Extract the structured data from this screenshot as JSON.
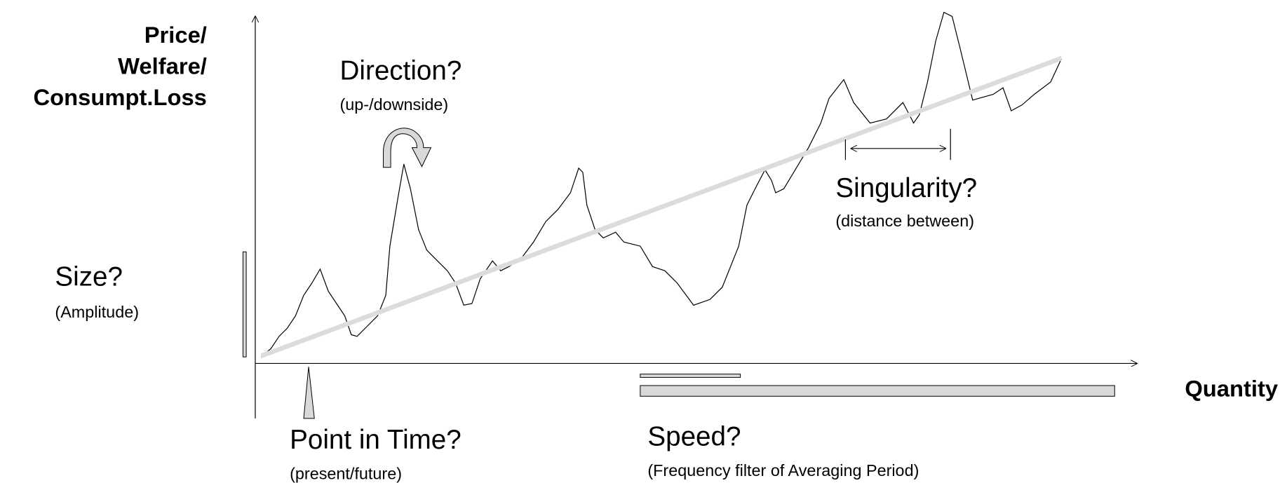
{
  "y_axis_label": [
    "Price/",
    "Welfare/",
    "Consumpt.Loss"
  ],
  "x_axis_label": "Quantity",
  "annotations": [
    {
      "title": "Direction?",
      "subtitle": "(up-/downside)"
    },
    {
      "title": "Size?",
      "subtitle": "(Amplitude)"
    },
    {
      "title": "Singularity?",
      "subtitle": "(distance between)"
    },
    {
      "title": "Point in Time?",
      "subtitle": "(present/future)"
    },
    {
      "title": "Speed?",
      "subtitle": "(Frequency filter of Averaging Period)"
    }
  ]
}
